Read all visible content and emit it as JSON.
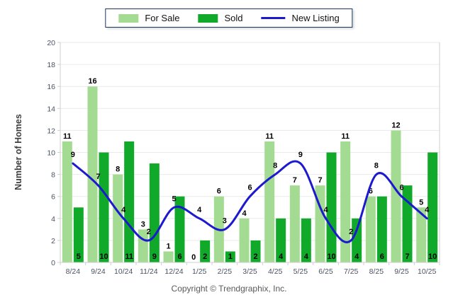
{
  "chart_data": {
    "type": "bar+line",
    "categories": [
      "8/24",
      "9/24",
      "10/24",
      "11/24",
      "12/24",
      "1/25",
      "2/25",
      "3/25",
      "4/25",
      "5/25",
      "6/25",
      "7/25",
      "8/25",
      "9/25",
      "10/25"
    ],
    "series": [
      {
        "name": "For Sale",
        "type": "bar",
        "color": "#A4DB92",
        "values": [
          11,
          16,
          8,
          3,
          1,
          0,
          6,
          4,
          11,
          7,
          7,
          11,
          6,
          12,
          5
        ]
      },
      {
        "name": "Sold",
        "type": "bar",
        "color": "#10A929",
        "values": [
          5,
          10,
          11,
          9,
          6,
          2,
          1,
          2,
          4,
          4,
          10,
          4,
          6,
          7,
          10
        ]
      },
      {
        "name": "New Listing",
        "type": "line",
        "color": "#1C19CF",
        "values": [
          9,
          7,
          4,
          2,
          5,
          4,
          3,
          6,
          8,
          9,
          4,
          2,
          8,
          6,
          4
        ]
      }
    ],
    "title": "",
    "xlabel": "",
    "ylabel": "Number of Homes",
    "ylim": [
      0,
      20
    ],
    "ytick_step": 2,
    "grid": true,
    "legend_position": "top-center",
    "footer": "Copyright © Trendgraphix, Inc."
  },
  "colors": {
    "grid": "#EAEAEA",
    "axis": "#CFCFCF",
    "tick_label": "#4A5263",
    "axis_title": "#3D3D3D",
    "data_label": "#000000",
    "legend_border": "#16375E",
    "footer_text": "#595959",
    "background": "#FFFFFF"
  }
}
